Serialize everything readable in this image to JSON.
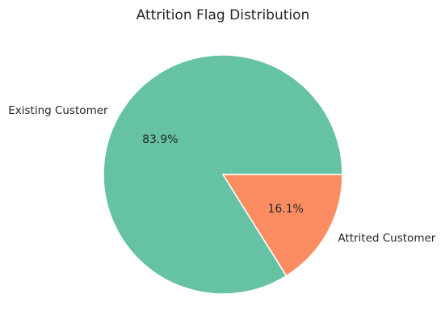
{
  "chart_data": {
    "type": "pie",
    "title": "Attrition Flag Distribution",
    "categories": [
      "Existing Customer",
      "Attrited Customer"
    ],
    "values": [
      83.9,
      16.1
    ],
    "percent_labels": [
      "83.9%",
      "16.1%"
    ],
    "colors": [
      "#66c2a5",
      "#fc8d62"
    ],
    "start_angle_deg": 0,
    "direction": "counterclockwise",
    "legend": "none"
  }
}
